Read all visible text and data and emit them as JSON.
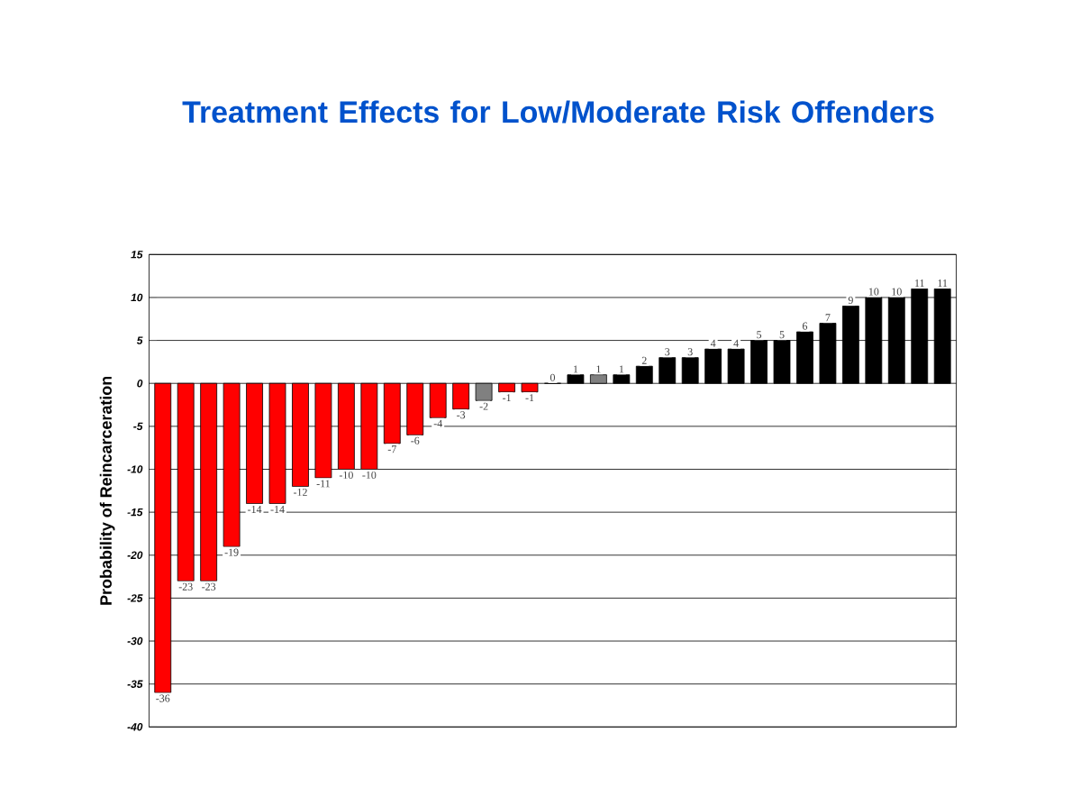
{
  "chart_data": {
    "type": "bar",
    "title": "Treatment Effects for Low/Moderate Risk Offenders",
    "ylabel": "Probability of Reincarceration",
    "categories": [
      null,
      null,
      null,
      null,
      null,
      null,
      null,
      null,
      null,
      null,
      null,
      null,
      null,
      null,
      null,
      null,
      null,
      null,
      null,
      null,
      null,
      null,
      null,
      null,
      null,
      null,
      null,
      null,
      null,
      null,
      null,
      null,
      null,
      null,
      null
    ],
    "values": [
      -36,
      -23,
      -23,
      -19,
      -14,
      -14,
      -12,
      -11,
      -10,
      -10,
      -7,
      -6,
      -4,
      -3,
      -2,
      -1,
      -1,
      0,
      1,
      1,
      1,
      2,
      3,
      3,
      4,
      4,
      5,
      5,
      6,
      7,
      9,
      10,
      10,
      11,
      11
    ],
    "colors": [
      "#ff0000",
      "#ff0000",
      "#ff0000",
      "#ff0000",
      "#ff0000",
      "#ff0000",
      "#ff0000",
      "#ff0000",
      "#ff0000",
      "#ff0000",
      "#ff0000",
      "#ff0000",
      "#ff0000",
      "#ff0000",
      "#808080",
      "#ff0000",
      "#ff0000",
      "#000000",
      "#000000",
      "#808080",
      "#000000",
      "#000000",
      "#000000",
      "#000000",
      "#000000",
      "#000000",
      "#000000",
      "#000000",
      "#000000",
      "#000000",
      "#000000",
      "#000000",
      "#000000",
      "#000000",
      "#000000"
    ],
    "ylim": [
      -40,
      15
    ],
    "yticks": [
      -40,
      -35,
      -30,
      -25,
      -20,
      -15,
      -10,
      -5,
      0,
      5,
      10,
      15
    ],
    "grid": "y",
    "data_labels": true
  }
}
